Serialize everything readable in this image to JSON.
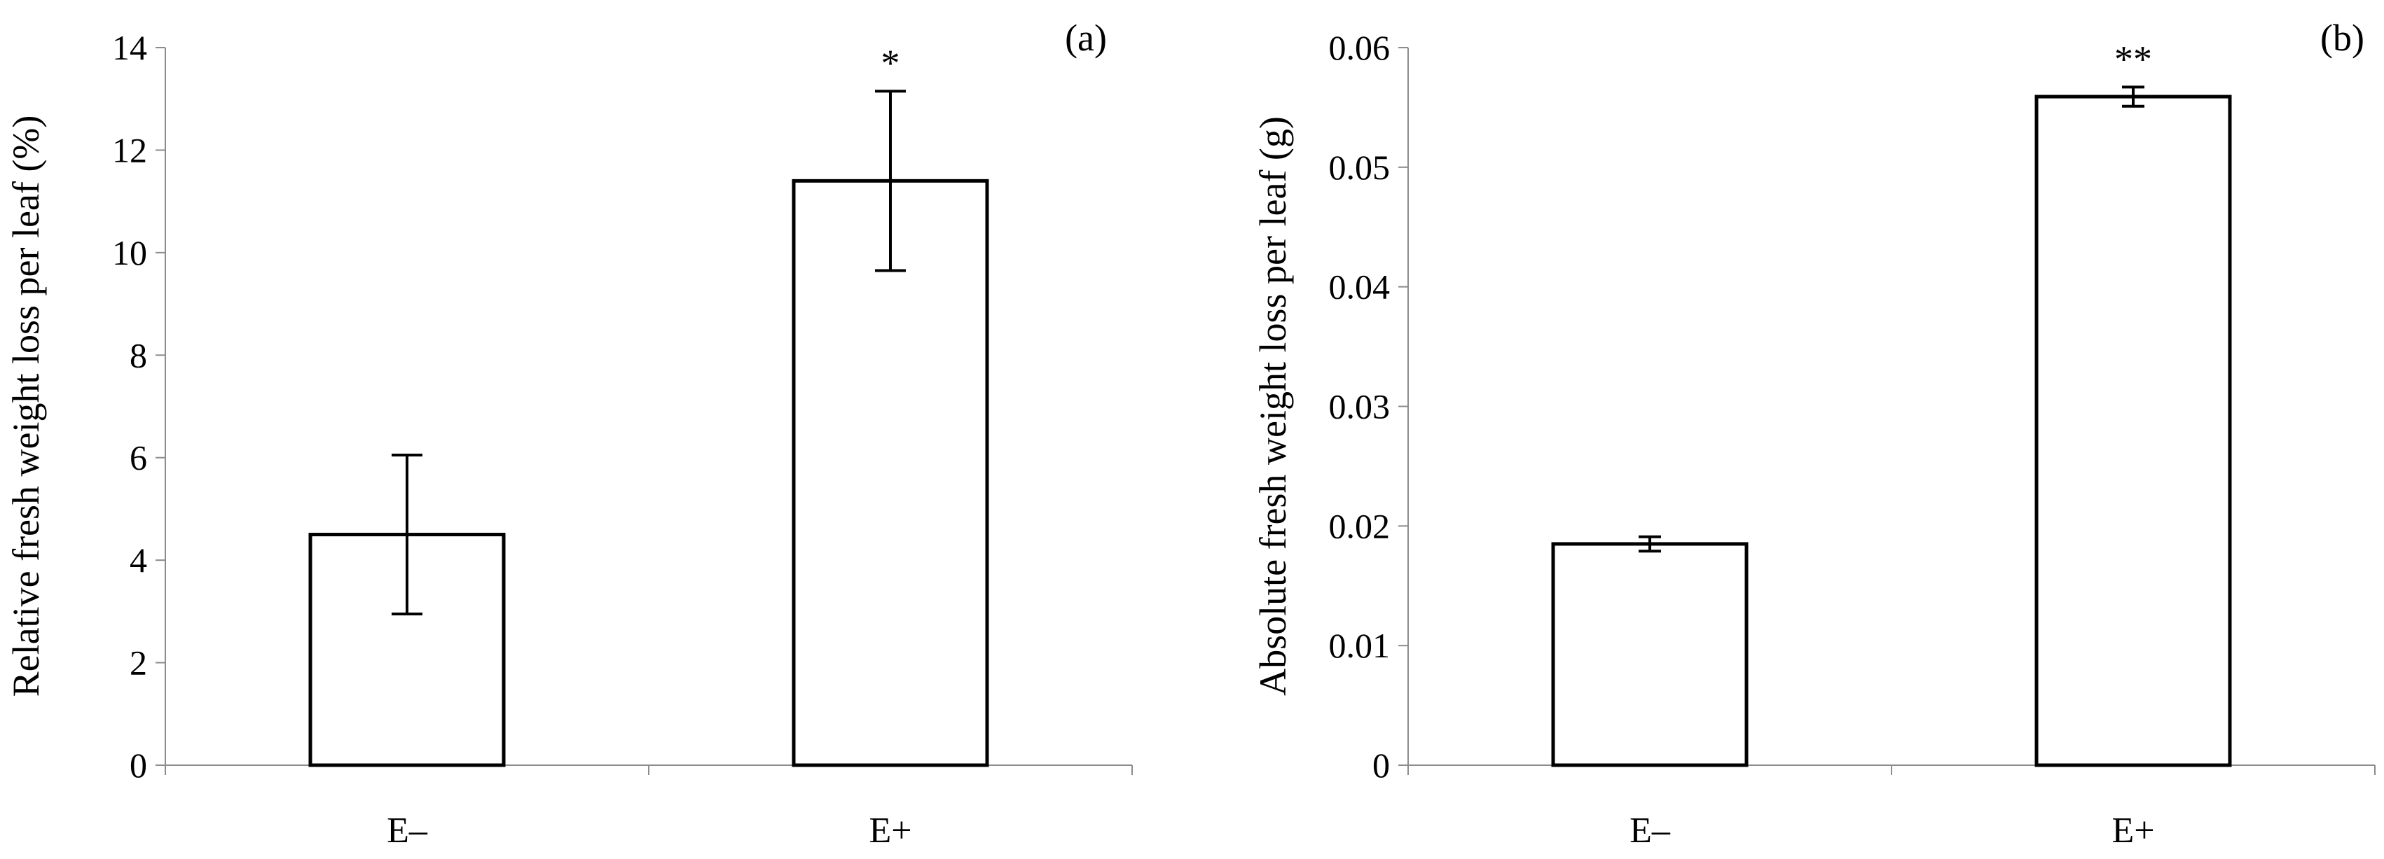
{
  "chart_data": [
    {
      "type": "bar",
      "panel_label": "(a)",
      "categories": [
        "E–",
        "E+"
      ],
      "values": [
        4.5,
        11.4
      ],
      "error": [
        1.55,
        1.75
      ],
      "significance": [
        "",
        "*"
      ],
      "ylabel": "Relative fresh weight loss per leaf (%)",
      "ylim": [
        0,
        14
      ],
      "yticks": [
        0,
        2,
        4,
        6,
        8,
        10,
        12,
        14
      ],
      "ytick_labels": [
        "0",
        "2",
        "4",
        "6",
        "8",
        "10",
        "12",
        "14"
      ],
      "bar_fill": "#ffffff",
      "bar_stroke": "#000000",
      "grid": false
    },
    {
      "type": "bar",
      "panel_label": "(b)",
      "categories": [
        "E–",
        "E+"
      ],
      "values": [
        0.0185,
        0.0559
      ],
      "error": [
        0.0006,
        0.0008
      ],
      "significance": [
        "",
        "**"
      ],
      "ylabel": "Absolute fresh weight loss per leaf (g)",
      "ylim": [
        0,
        0.06
      ],
      "yticks": [
        0,
        0.01,
        0.02,
        0.03,
        0.04,
        0.05,
        0.06
      ],
      "ytick_labels": [
        "0",
        "0.01",
        "0.02",
        "0.03",
        "0.04",
        "0.05",
        "0.06"
      ],
      "bar_fill": "#ffffff",
      "bar_stroke": "#000000",
      "grid": false
    }
  ]
}
